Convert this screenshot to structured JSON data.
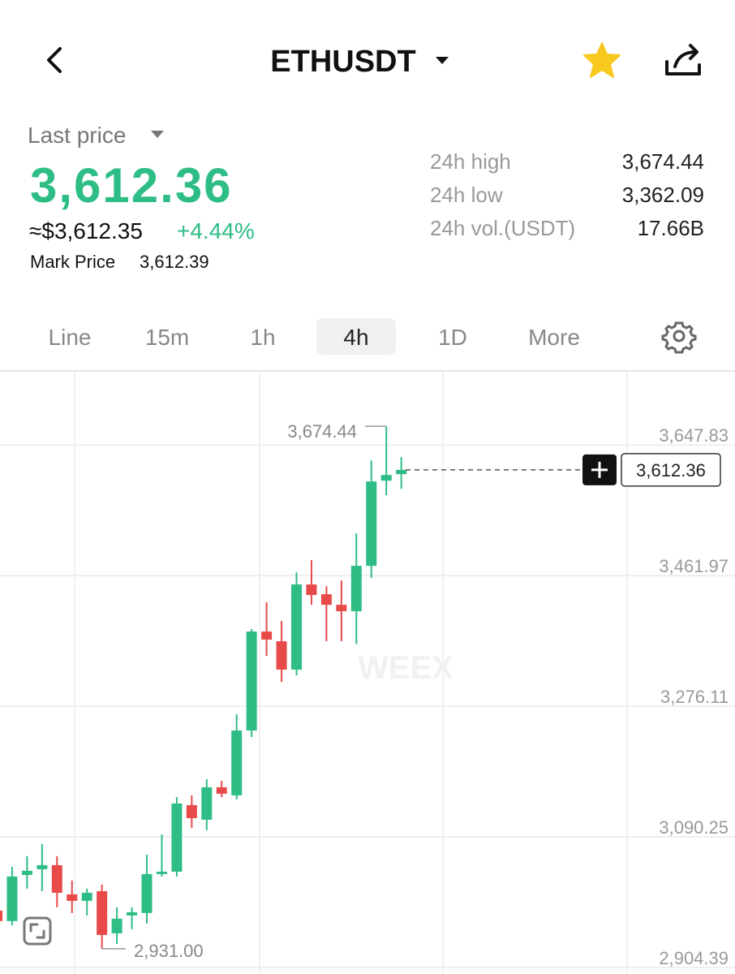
{
  "header": {
    "title": "ETHUSDT"
  },
  "price": {
    "label": "Last price",
    "last": "3,612.36",
    "usd": "≈$3,612.35",
    "change": "+4.44%",
    "mark_label": "Mark Price",
    "mark": "3,612.39"
  },
  "stats": [
    {
      "label": "24h high",
      "value": "3,674.44"
    },
    {
      "label": "24h low",
      "value": "3,362.09"
    },
    {
      "label": "24h vol.(USDT)",
      "value": "17.66B"
    }
  ],
  "tabs": {
    "items": [
      "Line",
      "15m",
      "1h",
      "4h",
      "1D",
      "More"
    ],
    "active": 3
  },
  "chart_data": {
    "type": "candlestick",
    "watermark": "WEEX",
    "open": [
      2985.2,
      2970.3,
      3036.0,
      3044.1,
      3049.9,
      3008.3,
      2999.1,
      3012.9,
      2952.9,
      2978.3,
      2981.8,
      3037.2,
      3040.6,
      3135.3,
      3114.5,
      3160.7,
      3149.2,
      3241.5,
      3382.3,
      3368.5,
      3328.1,
      3449.3,
      3435.4,
      3420.4,
      3411.2,
      3475.8,
      3597.0,
      3606.3
    ],
    "high": [
      2991.0,
      3047.6,
      3062.6,
      3079.9,
      3062.6,
      3028.0,
      3016.4,
      3022.2,
      2989.9,
      2989.9,
      3064.9,
      3093.7,
      3146.8,
      3149.2,
      3172.2,
      3169.9,
      3264.6,
      3385.8,
      3423.9,
      3397.3,
      3466.6,
      3483.9,
      3447.0,
      3455.0,
      3522.0,
      3625.9,
      3674.44,
      3630.5
    ],
    "low": [
      2958.0,
      2964.5,
      3016.4,
      3012.9,
      2989.9,
      2981.8,
      2978.3,
      2931.0,
      2937.9,
      2958.7,
      2966.8,
      3033.7,
      3033.7,
      3102.9,
      3099.5,
      3146.8,
      3143.4,
      3232.3,
      3347.7,
      3310.8,
      3320.0,
      3420.4,
      3368.5,
      3368.5,
      3364.3,
      3458.5,
      3576.3,
      3585.5
    ],
    "close": [
      2970.3,
      3033.7,
      3041.8,
      3049.9,
      3010.6,
      2999.1,
      3010.6,
      2950.6,
      2973.7,
      2982.9,
      3037.2,
      3040.6,
      3137.6,
      3116.8,
      3160.7,
      3151.5,
      3241.5,
      3382.3,
      3370.8,
      3328.1,
      3449.3,
      3434.3,
      3420.4,
      3411.2,
      3475.8,
      3595.9,
      3605.1,
      3612.36
    ],
    "up_color": "#2ebd85",
    "down_color": "#e84a4a",
    "ylim": [
      2895,
      3752
    ],
    "yticks": [
      {
        "value": 3647.83,
        "label": "3,647.83"
      },
      {
        "value": 3461.97,
        "label": "3,461.97"
      },
      {
        "value": 3276.11,
        "label": "3,276.11"
      },
      {
        "value": 3090.25,
        "label": "3,090.25"
      },
      {
        "value": 2904.39,
        "label": "2,904.39"
      }
    ],
    "grid": true,
    "high_label": {
      "value": 3674.44,
      "label": "3,674.44"
    },
    "low_label": {
      "value": 2931.0,
      "label": "2,931.00"
    },
    "current": {
      "value": 3612.36,
      "label": "3,612.36"
    }
  }
}
